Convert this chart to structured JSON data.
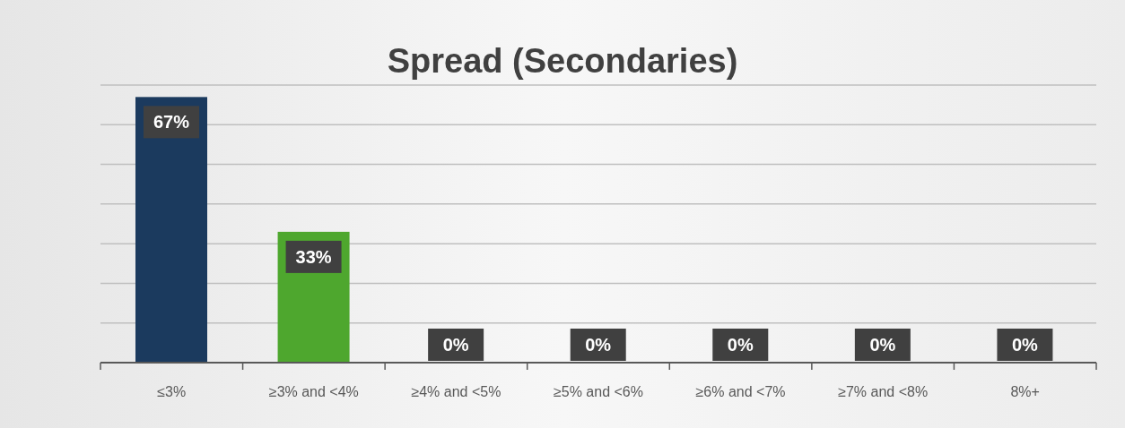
{
  "chart_data": {
    "type": "bar",
    "title": "Spread (Secondaries)",
    "categories": [
      "≤3%",
      "≥3% and <4%",
      "≥4% and <5%",
      "≥5% and <6%",
      "≥6% and <7%",
      "≥7% and <8%",
      "8%+"
    ],
    "values": [
      67,
      33,
      0,
      0,
      0,
      0,
      0
    ],
    "value_labels": [
      "67%",
      "33%",
      "0%",
      "0%",
      "0%",
      "0%",
      "0%"
    ],
    "colors": [
      "#1b3a5e",
      "#4ea72e",
      "#1b3a5e",
      "#1b3a5e",
      "#1b3a5e",
      "#1b3a5e",
      "#1b3a5e"
    ],
    "tick_labels": "x",
    "grid": "y"
  }
}
